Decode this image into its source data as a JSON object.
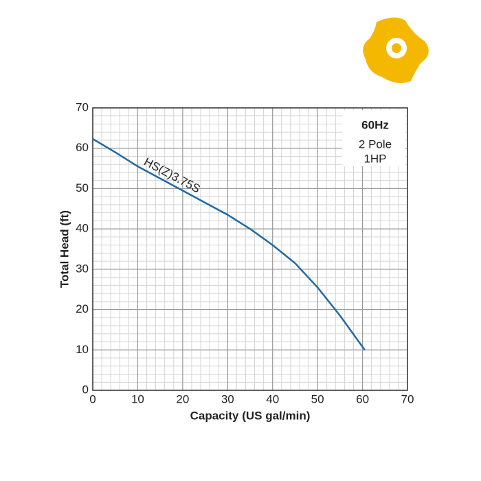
{
  "chart_data": {
    "type": "line",
    "x_label": "Capacity (US gal/min)",
    "y_label": "Total Head (ft)",
    "annotations": [
      "60Hz",
      "2 Pole",
      "1HP"
    ],
    "series": [
      {
        "name": "HS(Z)3.75S",
        "color": "#1f6aa5",
        "x": [
          0,
          5,
          10,
          15,
          20,
          25,
          30,
          35,
          40,
          45,
          50,
          55,
          60.5
        ],
        "values": [
          62.3,
          59,
          55.5,
          52.5,
          49.5,
          46.5,
          43.5,
          40,
          36,
          31.5,
          25.5,
          18.5,
          10
        ]
      }
    ],
    "xlim": [
      0,
      70
    ],
    "xticks": [
      0,
      10,
      20,
      30,
      40,
      50,
      60,
      70
    ],
    "ylim": [
      0,
      70
    ],
    "yticks": [
      0,
      10,
      20,
      30,
      40,
      50,
      60,
      70
    ],
    "grid": true
  }
}
